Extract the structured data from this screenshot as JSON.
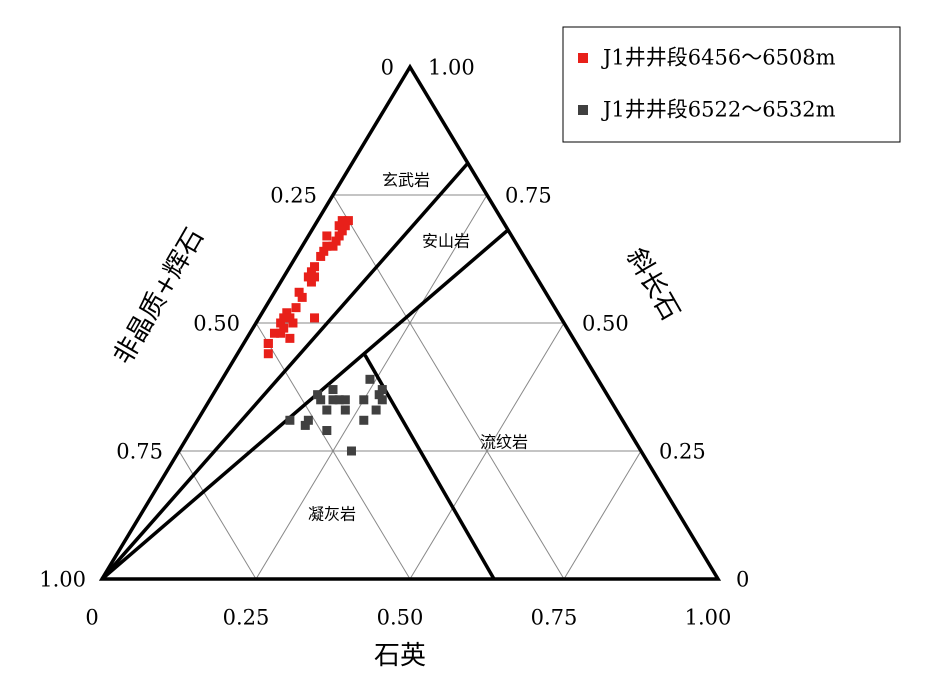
{
  "chart_data": {
    "type": "ternary",
    "axes": {
      "bottom": {
        "title": "石英",
        "ticks": [
          0,
          {
            "value": 0.25,
            "label": "0.25"
          },
          {
            "value": 0.5,
            "label": "0.50"
          },
          {
            "value": 0.75,
            "label": "0.75"
          },
          {
            "value": 1,
            "label": "1.00"
          }
        ]
      },
      "left": {
        "title": "非晶质+辉石",
        "ticks": [
          0,
          {
            "value": 0.25,
            "label": "0.25"
          },
          {
            "value": 0.5,
            "label": "0.50"
          },
          {
            "value": 0.75,
            "label": "0.75"
          },
          {
            "value": 1,
            "label": "1.00"
          }
        ]
      },
      "right": {
        "title": "斜长石",
        "ticks": [
          {
            "value": 1,
            "label": "1.00"
          },
          {
            "value": 0.75,
            "label": "0.75"
          },
          {
            "value": 0.5,
            "label": "0.50"
          },
          {
            "value": 0.25,
            "label": "0.25"
          },
          0
        ]
      }
    },
    "grid": true,
    "field_labels": [
      "玄武岩",
      "安山岩",
      "流纹岩",
      "凝灰岩"
    ],
    "legend": "upper right",
    "series": [
      {
        "name": "J1井井段6456～6508m",
        "color": "#e8201a",
        "quartz": [
          0.05,
          0.05,
          0.05,
          0.05,
          0.05,
          0.05,
          0.04,
          0.04,
          0.04,
          0.04,
          0.04,
          0.04,
          0.04,
          0.04,
          0.05,
          0.05,
          0.04,
          0.05,
          0.05,
          0.04,
          0.04,
          0.05,
          0.06,
          0.04,
          0.05,
          0.04,
          0.07,
          0.04,
          0.04,
          0.05,
          0.05,
          0.09,
          0.03
        ],
        "plagioclase": [
          0.7,
          0.69,
          0.68,
          0.67,
          0.66,
          0.65,
          0.65,
          0.64,
          0.63,
          0.69,
          0.7,
          0.61,
          0.6,
          0.59,
          0.58,
          0.59,
          0.56,
          0.55,
          0.53,
          0.52,
          0.51,
          0.51,
          0.5,
          0.5,
          0.49,
          0.48,
          0.47,
          0.46,
          0.46,
          0.44,
          0.48,
          0.51,
          0.67
        ],
        "glass": [
          0.25,
          0.26,
          0.27,
          0.28,
          0.29,
          0.3,
          0.31,
          0.32,
          0.33,
          0.27,
          0.26,
          0.35,
          0.36,
          0.37,
          0.37,
          0.36,
          0.4,
          0.4,
          0.42,
          0.44,
          0.45,
          0.44,
          0.44,
          0.46,
          0.46,
          0.48,
          0.46,
          0.5,
          0.5,
          0.51,
          0.47,
          0.4,
          0.3
        ]
      },
      {
        "name": "J1井井段6522～6532m",
        "color": "#404040",
        "quartz": [
          0.19,
          0.24,
          0.27,
          0.27,
          0.28,
          0.28,
          0.25,
          0.22,
          0.23,
          0.2,
          0.18,
          0.17,
          0.2,
          0.21,
          0.18,
          0.18,
          0.15,
          0.22,
          0.27,
          0.28
        ],
        "plagioclase": [
          0.37,
          0.39,
          0.37,
          0.36,
          0.35,
          0.33,
          0.35,
          0.35,
          0.33,
          0.35,
          0.35,
          0.36,
          0.33,
          0.35,
          0.31,
          0.3,
          0.31,
          0.29,
          0.31,
          0.25
        ],
        "glass": [
          0.44,
          0.37,
          0.36,
          0.37,
          0.37,
          0.39,
          0.4,
          0.43,
          0.44,
          0.45,
          0.47,
          0.47,
          0.47,
          0.44,
          0.51,
          0.52,
          0.54,
          0.49,
          0.42,
          0.47
        ]
      }
    ]
  }
}
